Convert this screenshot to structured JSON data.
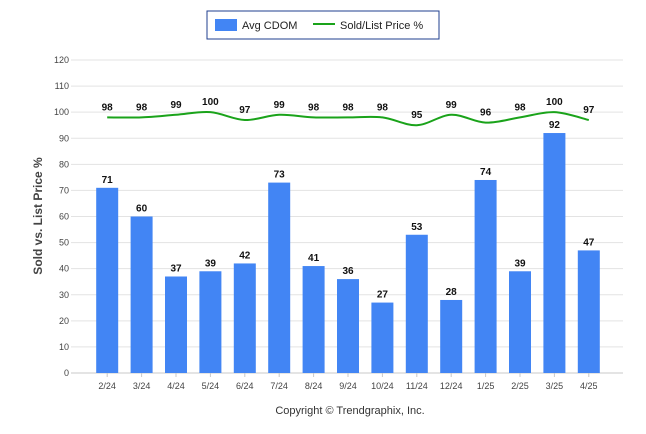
{
  "chart_data": {
    "type": "bar",
    "categories": [
      "2/24",
      "3/24",
      "4/24",
      "5/24",
      "6/24",
      "7/24",
      "8/24",
      "9/24",
      "10/24",
      "11/24",
      "12/24",
      "1/25",
      "2/25",
      "3/25",
      "4/25"
    ],
    "series": [
      {
        "name": "Avg CDOM",
        "type": "bar",
        "color": "#4285f4",
        "values": [
          71,
          60,
          37,
          39,
          42,
          73,
          41,
          36,
          27,
          53,
          28,
          74,
          39,
          92,
          47
        ]
      },
      {
        "name": "Sold/List Price %",
        "type": "line",
        "color": "#1aa31a",
        "values": [
          98,
          98,
          99,
          100,
          97,
          99,
          98,
          98,
          98,
          95,
          99,
          96,
          98,
          100,
          97
        ]
      }
    ],
    "ylabel": "Sold vs. List Price %",
    "ylim": [
      0,
      120
    ],
    "yticks": [
      0,
      10,
      20,
      30,
      40,
      50,
      60,
      70,
      80,
      90,
      100,
      110,
      120
    ],
    "grid": true,
    "legend": "top-center",
    "footer": "Copyright © Trendgraphix, Inc."
  }
}
